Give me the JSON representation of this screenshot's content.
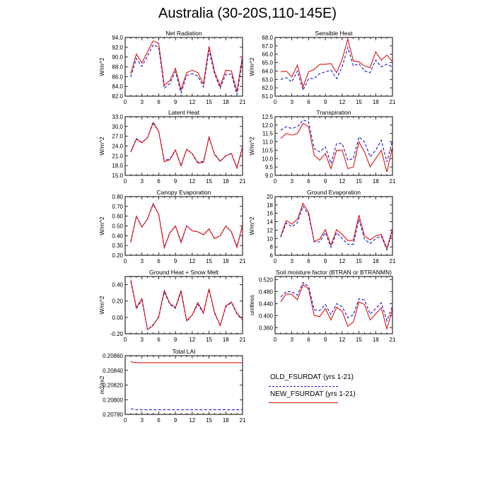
{
  "page": {
    "title": "Australia (30-20S,110-145E)"
  },
  "colors": {
    "old": "#1a1acc",
    "new": "#e01010"
  },
  "legend": {
    "items": [
      {
        "label": "OLD_FSURDAT (yrs 1-21)",
        "color": "#1a1acc",
        "style": "dashed"
      },
      {
        "label": "NEW_FSURDAT (yrs 1-21)",
        "color": "#e01010",
        "style": "solid"
      }
    ]
  },
  "chart_data": [
    {
      "type": "line",
      "title": "Net Radiation",
      "ylabel": "W/m^2",
      "xlabel": "",
      "xlim": [
        0,
        21
      ],
      "ylim": [
        82,
        94
      ],
      "xticks": [
        0,
        3,
        6,
        9,
        12,
        15,
        18,
        21
      ],
      "yticks": [
        "82.0",
        "84.0",
        "86.0",
        "88.0",
        "90.0",
        "92.0",
        "94.0"
      ],
      "x": [
        1,
        2,
        3,
        4,
        5,
        6,
        7,
        8,
        9,
        10,
        11,
        12,
        13,
        14,
        15,
        16,
        17,
        18,
        19,
        20,
        21
      ],
      "series": [
        {
          "name": "OLD_FSURDAT (yrs 1-21)",
          "color": "#1a1acc",
          "style": "dashed",
          "values": [
            85.9,
            89.7,
            88.1,
            90.2,
            92.5,
            92.0,
            83.6,
            84.6,
            87.0,
            82.7,
            86.2,
            86.6,
            86.1,
            83.9,
            91.4,
            86.5,
            83.6,
            86.5,
            86.5,
            82.3,
            89.5
          ]
        },
        {
          "name": "NEW_FSURDAT (yrs 1-21)",
          "color": "#e01010",
          "style": "solid",
          "values": [
            86.6,
            90.6,
            88.8,
            91.1,
            93.3,
            92.8,
            84.2,
            85.2,
            87.7,
            83.3,
            86.8,
            87.3,
            86.8,
            84.5,
            92.2,
            87.0,
            84.1,
            87.3,
            87.2,
            82.9,
            90.3
          ]
        }
      ]
    },
    {
      "type": "line",
      "title": "Sensible Heat",
      "ylabel": "W/m^2",
      "xlabel": "",
      "xlim": [
        0,
        21
      ],
      "ylim": [
        61,
        68
      ],
      "xticks": [
        0,
        3,
        6,
        9,
        12,
        15,
        18,
        21
      ],
      "yticks": [
        "61.0",
        "62.0",
        "63.0",
        "64.0",
        "65.0",
        "66.0",
        "67.0",
        "68.0"
      ],
      "x": [
        1,
        2,
        3,
        4,
        5,
        6,
        7,
        8,
        9,
        10,
        11,
        12,
        13,
        14,
        15,
        16,
        17,
        18,
        19,
        20,
        21
      ],
      "series": [
        {
          "name": "OLD_FSURDAT (yrs 1-21)",
          "color": "#1a1acc",
          "style": "dashed",
          "values": [
            63.0,
            63.2,
            62.7,
            64.0,
            61.7,
            63.1,
            63.1,
            63.7,
            63.9,
            64.1,
            63.1,
            64.5,
            66.8,
            64.6,
            64.9,
            64.0,
            63.8,
            65.3,
            64.5,
            64.8,
            64.5
          ]
        },
        {
          "name": "NEW_FSURDAT (yrs 1-21)",
          "color": "#e01010",
          "style": "solid",
          "values": [
            63.9,
            64.0,
            63.3,
            64.7,
            62.1,
            63.9,
            64.2,
            64.8,
            64.8,
            64.9,
            63.8,
            65.4,
            67.8,
            65.2,
            65.1,
            64.6,
            64.4,
            66.3,
            65.3,
            65.9,
            65.1
          ]
        }
      ]
    },
    {
      "type": "line",
      "title": "Latent Heat",
      "ylabel": "W/m^2",
      "xlabel": "",
      "xlim": [
        0,
        21
      ],
      "ylim": [
        15,
        33
      ],
      "xticks": [
        0,
        3,
        6,
        9,
        12,
        15,
        18,
        21
      ],
      "yticks": [
        "15.0",
        "18.0",
        "21.0",
        "24.0",
        "27.0",
        "30.0",
        "33.0"
      ],
      "x": [
        1,
        2,
        3,
        4,
        5,
        6,
        7,
        8,
        9,
        10,
        11,
        12,
        13,
        14,
        15,
        16,
        17,
        18,
        19,
        20,
        21
      ],
      "series": [
        {
          "name": "OLD_FSURDAT (yrs 1-21)",
          "color": "#1a1acc",
          "style": "dashed",
          "values": [
            22.3,
            26.3,
            25.1,
            26.6,
            31.4,
            28.6,
            19.6,
            20.0,
            22.8,
            18.0,
            23.0,
            21.7,
            19.0,
            19.2,
            26.6,
            21.5,
            19.4,
            21.0,
            21.8,
            17.4,
            23.9
          ]
        },
        {
          "name": "NEW_FSURDAT (yrs 1-21)",
          "color": "#e01010",
          "style": "solid",
          "values": [
            22.1,
            26.1,
            25.0,
            26.6,
            31.0,
            28.6,
            19.2,
            19.8,
            22.7,
            17.9,
            23.0,
            21.6,
            18.8,
            19.0,
            26.8,
            21.3,
            19.3,
            21.0,
            21.7,
            17.2,
            23.7
          ]
        }
      ]
    },
    {
      "type": "line",
      "title": "Transpiration",
      "ylabel": "W/m^2",
      "xlabel": "",
      "xlim": [
        0,
        21
      ],
      "ylim": [
        9,
        12.5
      ],
      "xticks": [
        0,
        3,
        6,
        9,
        12,
        15,
        18,
        21
      ],
      "yticks": [
        "9.0",
        "9.5",
        "10.0",
        "10.5",
        "11.0",
        "11.5",
        "12.0",
        "12.5"
      ],
      "x": [
        1,
        2,
        3,
        4,
        5,
        6,
        7,
        8,
        9,
        10,
        11,
        12,
        13,
        14,
        15,
        16,
        17,
        18,
        19,
        20,
        21
      ],
      "series": [
        {
          "name": "OLD_FSURDAT (yrs 1-21)",
          "color": "#1a1acc",
          "style": "dashed",
          "values": [
            11.7,
            11.9,
            11.8,
            11.9,
            12.3,
            12.2,
            10.6,
            10.4,
            10.7,
            9.7,
            10.9,
            10.9,
            9.9,
            10.0,
            11.3,
            11.0,
            10.1,
            10.5,
            11.1,
            9.8,
            11.1
          ]
        },
        {
          "name": "NEW_FSURDAT (yrs 1-21)",
          "color": "#e01010",
          "style": "solid",
          "values": [
            11.2,
            11.5,
            11.4,
            11.5,
            12.1,
            11.9,
            10.2,
            9.9,
            10.3,
            9.4,
            10.5,
            10.5,
            9.4,
            9.5,
            11.0,
            10.4,
            9.5,
            10.0,
            10.5,
            9.2,
            10.7
          ]
        }
      ]
    },
    {
      "type": "line",
      "title": "Canopy Evaporation",
      "ylabel": "W/m^2",
      "xlabel": "",
      "xlim": [
        0,
        21
      ],
      "ylim": [
        0.2,
        0.8
      ],
      "xticks": [
        0,
        3,
        6,
        9,
        12,
        15,
        18,
        21
      ],
      "yticks": [
        "0.20",
        "0.30",
        "0.40",
        "0.50",
        "0.60",
        "0.70",
        "0.80"
      ],
      "x": [
        1,
        2,
        3,
        4,
        5,
        6,
        7,
        8,
        9,
        10,
        11,
        12,
        13,
        14,
        15,
        16,
        17,
        18,
        19,
        20,
        21
      ],
      "series": [
        {
          "name": "OLD_FSURDAT (yrs 1-21)",
          "color": "#1a1acc",
          "style": "dashed",
          "values": [
            0.34,
            0.6,
            0.49,
            0.57,
            0.72,
            0.62,
            0.28,
            0.43,
            0.5,
            0.34,
            0.5,
            0.45,
            0.44,
            0.41,
            0.47,
            0.37,
            0.4,
            0.5,
            0.44,
            0.29,
            0.51
          ]
        },
        {
          "name": "NEW_FSURDAT (yrs 1-21)",
          "color": "#e01010",
          "style": "solid",
          "values": [
            0.33,
            0.6,
            0.49,
            0.57,
            0.73,
            0.62,
            0.28,
            0.43,
            0.5,
            0.33,
            0.5,
            0.45,
            0.44,
            0.41,
            0.47,
            0.37,
            0.4,
            0.5,
            0.44,
            0.28,
            0.51
          ]
        }
      ]
    },
    {
      "type": "line",
      "title": "Ground Evaporation",
      "ylabel": "W/m^2",
      "xlabel": "",
      "xlim": [
        0,
        21
      ],
      "ylim": [
        6,
        20
      ],
      "xticks": [
        0,
        3,
        6,
        9,
        12,
        15,
        18,
        21
      ],
      "yticks": [
        "6",
        "8",
        "10",
        "12",
        "14",
        "16",
        "18",
        "20"
      ],
      "x": [
        1,
        2,
        3,
        4,
        5,
        6,
        7,
        8,
        9,
        10,
        11,
        12,
        13,
        14,
        15,
        16,
        17,
        18,
        19,
        20,
        21
      ],
      "series": [
        {
          "name": "OLD_FSURDAT (yrs 1-21)",
          "color": "#1a1acc",
          "style": "dashed",
          "values": [
            10.3,
            13.7,
            12.8,
            13.8,
            17.7,
            15.6,
            9.2,
            9.2,
            11.4,
            7.9,
            11.4,
            10.0,
            8.6,
            8.6,
            14.6,
            9.8,
            8.8,
            10.0,
            10.6,
            7.3,
            11.7
          ]
        },
        {
          "name": "NEW_FSURDAT (yrs 1-21)",
          "color": "#e01010",
          "style": "solid",
          "values": [
            10.5,
            14.3,
            13.4,
            14.6,
            18.4,
            16.2,
            9.3,
            9.9,
            12.1,
            8.4,
            12.1,
            11.0,
            9.5,
            9.6,
            15.6,
            10.6,
            9.7,
            10.6,
            11.0,
            7.6,
            12.4
          ]
        }
      ]
    },
    {
      "type": "line",
      "title": "Ground Heat + Snow Melt",
      "ylabel": "W/m^2",
      "xlabel": "",
      "xlim": [
        0,
        21
      ],
      "ylim": [
        -0.2,
        0.5
      ],
      "xticks": [
        0,
        3,
        6,
        9,
        12,
        15,
        18,
        21
      ],
      "yticks": [
        "-0.20",
        "0.00",
        "0.20",
        "0.40"
      ],
      "ytick_values": [
        -0.2,
        0.0,
        0.2,
        0.4
      ],
      "x": [
        1,
        2,
        3,
        4,
        5,
        6,
        7,
        8,
        9,
        10,
        11,
        12,
        13,
        14,
        15,
        16,
        17,
        18,
        19,
        20,
        21
      ],
      "series": [
        {
          "name": "OLD_FSURDAT (yrs 1-21)",
          "color": "#1a1acc",
          "style": "dashed",
          "values": [
            0.44,
            0.11,
            0.21,
            -0.15,
            -0.09,
            0.0,
            0.31,
            0.16,
            0.11,
            0.31,
            -0.05,
            0.03,
            0.16,
            0.05,
            0.34,
            0.05,
            -0.1,
            0.13,
            0.18,
            0.04,
            -0.03
          ]
        },
        {
          "name": "NEW_FSURDAT (yrs 1-21)",
          "color": "#e01010",
          "style": "solid",
          "values": [
            0.46,
            0.12,
            0.23,
            -0.15,
            -0.1,
            0.01,
            0.33,
            0.17,
            0.12,
            0.33,
            -0.04,
            0.03,
            0.18,
            0.06,
            0.35,
            0.06,
            -0.1,
            0.14,
            0.19,
            0.05,
            -0.02
          ]
        }
      ]
    },
    {
      "type": "line",
      "title": "Soil moisture factor (BTRAN or BTRANMN)",
      "ylabel": "unitless",
      "xlabel": "",
      "xlim": [
        0,
        21
      ],
      "ylim": [
        0.34,
        0.53
      ],
      "xticks": [
        0,
        3,
        6,
        9,
        12,
        15,
        18,
        21
      ],
      "yticks": [
        "0.360",
        "0.400",
        "0.440",
        "0.480",
        "0.520"
      ],
      "ytick_values": [
        0.36,
        0.4,
        0.44,
        0.48,
        0.52
      ],
      "x": [
        1,
        2,
        3,
        4,
        5,
        6,
        7,
        8,
        9,
        10,
        11,
        12,
        13,
        14,
        15,
        16,
        17,
        18,
        19,
        20,
        21
      ],
      "series": [
        {
          "name": "OLD_FSURDAT (yrs 1-21)",
          "color": "#1a1acc",
          "style": "dashed",
          "values": [
            0.462,
            0.48,
            0.479,
            0.468,
            0.51,
            0.497,
            0.42,
            0.417,
            0.437,
            0.404,
            0.44,
            0.43,
            0.393,
            0.403,
            0.456,
            0.452,
            0.405,
            0.424,
            0.443,
            0.383,
            0.433
          ]
        },
        {
          "name": "NEW_FSURDAT (yrs 1-21)",
          "color": "#e01010",
          "style": "solid",
          "values": [
            0.446,
            0.472,
            0.471,
            0.453,
            0.503,
            0.489,
            0.401,
            0.397,
            0.424,
            0.386,
            0.428,
            0.415,
            0.365,
            0.379,
            0.446,
            0.437,
            0.386,
            0.406,
            0.426,
            0.356,
            0.422
          ]
        }
      ]
    },
    {
      "type": "line",
      "title": "Total LAI",
      "ylabel": "m2/m2",
      "xlabel": "",
      "xlim": [
        0,
        21
      ],
      "ylim": [
        0.2078,
        0.2086
      ],
      "xticks": [
        0,
        3,
        6,
        9,
        12,
        15,
        18,
        21
      ],
      "yticks": [
        "0.20780",
        "0.20800",
        "0.20820",
        "0.20840",
        "0.20860"
      ],
      "ytick_values": [
        0.2078,
        0.208,
        0.2082,
        0.2084,
        0.2086
      ],
      "x": [
        1,
        2,
        3,
        4,
        5,
        6,
        7,
        8,
        9,
        10,
        11,
        12,
        13,
        14,
        15,
        16,
        17,
        18,
        19,
        20,
        21
      ],
      "series": [
        {
          "name": "OLD_FSURDAT (yrs 1-21)",
          "color": "#1a1acc",
          "style": "dashed",
          "values": [
            0.207877,
            0.207864,
            0.207864,
            0.207864,
            0.207864,
            0.207864,
            0.207864,
            0.207864,
            0.207864,
            0.207864,
            0.207864,
            0.207864,
            0.207864,
            0.207864,
            0.207864,
            0.207864,
            0.207864,
            0.207864,
            0.207864,
            0.207864,
            0.207864
          ]
        },
        {
          "name": "NEW_FSURDAT (yrs 1-21)",
          "color": "#e01010",
          "style": "solid",
          "values": [
            0.208518,
            0.208505,
            0.208505,
            0.208505,
            0.208505,
            0.208505,
            0.208505,
            0.208505,
            0.208505,
            0.208505,
            0.208505,
            0.208505,
            0.208505,
            0.208505,
            0.208505,
            0.208505,
            0.208505,
            0.208505,
            0.208505,
            0.208505,
            0.208505
          ]
        }
      ]
    }
  ]
}
